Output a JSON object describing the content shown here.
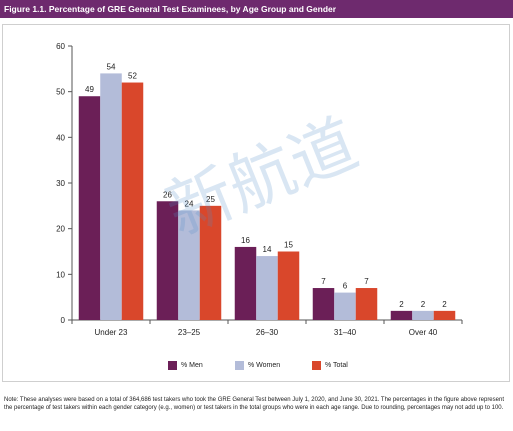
{
  "figure_title": "Figure 1.1. Percentage of GRE General Test Examinees, by Age Group and Gender",
  "note": "Note: These analyses were based on a total of 364,686 test takers who took the GRE General Test between July 1, 2020, and June 30, 2021. The percentages in the figure above represent the percentage of test takers within each gender category (e.g., women) or test takers in the total groups who were in each age range. Due to rounding, percentages may not add up to 100.",
  "watermark": "新航道",
  "colors": {
    "title_bg": "#6e2a6e",
    "men": "#6b1f57",
    "women": "#b3bcd9",
    "total": "#d9472b"
  },
  "chart_data": {
    "type": "bar",
    "title": "",
    "xlabel": "",
    "ylabel": "",
    "ylim": [
      0,
      60
    ],
    "yticks": [
      0,
      10,
      20,
      30,
      40,
      50,
      60
    ],
    "grid": false,
    "legend_position": "bottom",
    "categories": [
      "Under 23",
      "23–25",
      "26–30",
      "31–40",
      "Over 40"
    ],
    "series": [
      {
        "name": "% Men",
        "color": "#6b1f57",
        "values": [
          49,
          26,
          16,
          7,
          2
        ]
      },
      {
        "name": "% Women",
        "color": "#b3bcd9",
        "values": [
          54,
          24,
          14,
          6,
          2
        ]
      },
      {
        "name": "% Total",
        "color": "#d9472b",
        "values": [
          52,
          25,
          15,
          7,
          2
        ]
      }
    ]
  }
}
